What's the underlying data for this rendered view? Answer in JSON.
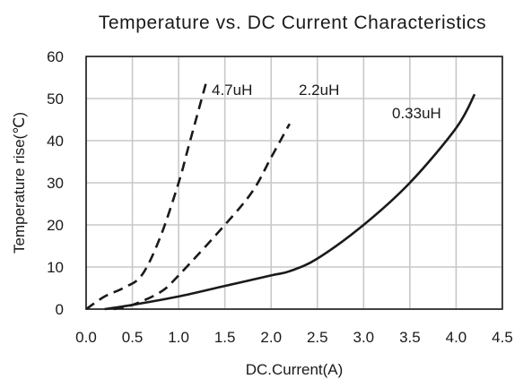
{
  "chart_data": {
    "type": "line",
    "title": "Temperature vs. DC Current Characteristics",
    "xlabel": "DC.Current(A)",
    "ylabel": "Temperature rise(℃)",
    "xlim": [
      0,
      4.5
    ],
    "ylim": [
      0,
      60
    ],
    "x_ticks": [
      "0.0",
      "0.5",
      "1.0",
      "1.5",
      "2.0",
      "2.5",
      "3.0",
      "3.5",
      "4.0",
      "4.5"
    ],
    "y_ticks": [
      "0",
      "10",
      "20",
      "30",
      "40",
      "50",
      "60"
    ],
    "x_tick_values": [
      0,
      0.5,
      1.0,
      1.5,
      2.0,
      2.5,
      3.0,
      3.5,
      4.0,
      4.5
    ],
    "y_tick_values": [
      0,
      10,
      20,
      30,
      40,
      50,
      60
    ],
    "grid": true,
    "series": [
      {
        "name": "4.7uH",
        "style": "dashed",
        "color": "#1a1a1a",
        "x": [
          0.0,
          0.2,
          0.4,
          0.6,
          0.8,
          1.0,
          1.1,
          1.2,
          1.3
        ],
        "y": [
          0,
          3,
          5,
          8,
          17,
          30,
          38,
          46,
          54
        ]
      },
      {
        "name": "2.2uH",
        "style": "dashed",
        "color": "#1a1a1a",
        "x": [
          0.3,
          0.5,
          0.8,
          1.0,
          1.5,
          1.8,
          2.0,
          2.2
        ],
        "y": [
          0,
          1,
          4,
          8,
          20,
          28,
          36,
          44
        ]
      },
      {
        "name": "0.33uH",
        "style": "solid",
        "color": "#1a1a1a",
        "x": [
          0.2,
          0.5,
          1.0,
          1.5,
          2.0,
          2.2,
          2.5,
          3.0,
          3.5,
          4.0,
          4.2
        ],
        "y": [
          0,
          1,
          3,
          5.5,
          8,
          9,
          12,
          20,
          30,
          43,
          51
        ]
      }
    ]
  }
}
